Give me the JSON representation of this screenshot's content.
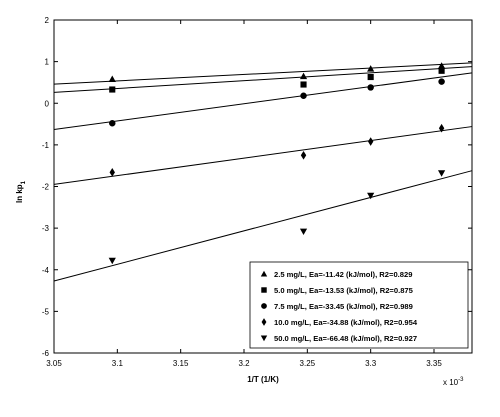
{
  "chart_data": {
    "type": "scatter",
    "xlabel": "1/T (1/K)",
    "x_multiplier": "x 10",
    "x_multiplier_exponent": "-3",
    "ylabel": "ln kp",
    "ylabel_subscript": "1",
    "xlim": [
      3.05,
      3.38
    ],
    "ylim": [
      -6,
      2
    ],
    "xticks": [
      3.05,
      3.1,
      3.15,
      3.2,
      3.25,
      3.3,
      3.35
    ],
    "xtick_labels": [
      "3.05",
      "3.1",
      "3.15",
      "3.2",
      "3.25",
      "3.3",
      "3.35"
    ],
    "yticks": [
      -6,
      -5,
      -4,
      -3,
      -2,
      -1,
      0,
      1,
      2
    ],
    "ytick_labels": [
      "-6",
      "-5",
      "-4",
      "-3",
      "-2",
      "-1",
      "0",
      "1",
      "2"
    ],
    "grid": false,
    "legend_position": "bottom-right",
    "series": [
      {
        "name": "2.5 mg/L,  Ea=-11.42 (kJ/mol), R2=0.829",
        "marker": "triangle-up",
        "x": [
          3.096,
          3.247,
          3.3,
          3.356
        ],
        "y": [
          0.58,
          0.65,
          0.83,
          0.9
        ],
        "fit": {
          "x": [
            3.05,
            3.38
          ],
          "y": [
            0.46,
            0.97
          ]
        }
      },
      {
        "name": "5.0 mg/L,  Ea=-13.53 (kJ/mol), R2=0.875",
        "marker": "square",
        "x": [
          3.096,
          3.247,
          3.3,
          3.356
        ],
        "y": [
          0.33,
          0.45,
          0.63,
          0.78
        ],
        "fit": {
          "x": [
            3.05,
            3.38
          ],
          "y": [
            0.26,
            0.88
          ]
        }
      },
      {
        "name": "7.5 mg/L,  Ea=-33.45 (kJ/mol), R2=0.989",
        "marker": "circle",
        "x": [
          3.096,
          3.247,
          3.3,
          3.356
        ],
        "y": [
          -0.48,
          0.18,
          0.38,
          0.52
        ],
        "fit": {
          "x": [
            3.05,
            3.38
          ],
          "y": [
            -0.63,
            0.73
          ]
        }
      },
      {
        "name": "10.0 mg/L,  Ea=-34.88 (kJ/mol), R2=0.954",
        "marker": "diamond",
        "x": [
          3.096,
          3.247,
          3.3,
          3.356
        ],
        "y": [
          -1.66,
          -1.25,
          -0.92,
          -0.6
        ],
        "fit": {
          "x": [
            3.05,
            3.38
          ],
          "y": [
            -1.95,
            -0.56
          ]
        }
      },
      {
        "name": "50.0 mg/L,  Ea=-66.48 (kJ/mol), R2=0.927",
        "marker": "triangle-down",
        "x": [
          3.096,
          3.247,
          3.3,
          3.356
        ],
        "y": [
          -3.78,
          -3.08,
          -2.22,
          -1.68
        ],
        "fit": {
          "x": [
            3.05,
            3.38
          ],
          "y": [
            -4.27,
            -1.62
          ]
        }
      }
    ]
  }
}
